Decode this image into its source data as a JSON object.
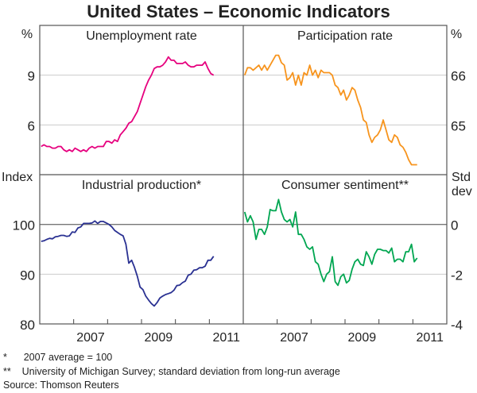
{
  "title": "United States – Economic Indicators",
  "chart_data": [
    {
      "type": "line",
      "title": "Unemployment rate",
      "ylabel": "%",
      "axis_side": "left",
      "ylim": [
        3,
        12
      ],
      "yticks": [
        6,
        9
      ],
      "xlim": [
        2006,
        2012
      ],
      "x_start": 2006,
      "step": "monthly",
      "color": "#e6007e",
      "values": [
        4.7,
        4.8,
        4.7,
        4.7,
        4.6,
        4.6,
        4.7,
        4.7,
        4.5,
        4.4,
        4.5,
        4.4,
        4.6,
        4.5,
        4.4,
        4.5,
        4.4,
        4.6,
        4.7,
        4.6,
        4.7,
        4.7,
        4.7,
        5.0,
        5.0,
        4.9,
        5.1,
        5.0,
        5.4,
        5.6,
        5.8,
        6.1,
        6.2,
        6.5,
        6.8,
        7.3,
        7.8,
        8.3,
        8.7,
        9.0,
        9.4,
        9.5,
        9.5,
        9.6,
        9.8,
        10.1,
        9.9,
        9.9,
        9.7,
        9.7,
        9.7,
        9.8,
        9.6,
        9.5,
        9.5,
        9.6,
        9.6,
        9.6,
        9.8,
        9.4,
        9.1,
        9.0
      ]
    },
    {
      "type": "line",
      "title": "Participation rate",
      "ylabel": "%",
      "axis_side": "right",
      "ylim": [
        64,
        67
      ],
      "yticks": [
        65,
        66
      ],
      "xlim": [
        2006,
        2012
      ],
      "x_start": 2006,
      "step": "monthly",
      "color": "#f7941d",
      "values": [
        66.0,
        66.15,
        66.15,
        66.1,
        66.15,
        66.2,
        66.1,
        66.2,
        66.1,
        66.2,
        66.3,
        66.4,
        66.4,
        66.25,
        66.2,
        65.9,
        65.95,
        66.05,
        65.8,
        66.0,
        65.8,
        66.05,
        66.0,
        66.2,
        66.0,
        66.1,
        65.95,
        66.1,
        66.05,
        66.05,
        66.05,
        66.0,
        65.8,
        65.75,
        65.6,
        65.7,
        65.5,
        65.6,
        65.75,
        65.7,
        65.5,
        65.35,
        65.1,
        65.05,
        64.8,
        64.65,
        64.75,
        64.8,
        64.9,
        65.1,
        64.9,
        64.7,
        64.65,
        64.8,
        64.75,
        64.6,
        64.55,
        64.45,
        64.3,
        64.2,
        64.2,
        64.2
      ]
    },
    {
      "type": "line",
      "title": "Industrial production*",
      "ylabel": "Index",
      "axis_side": "left",
      "ylim": [
        80,
        110
      ],
      "yticks": [
        80,
        90,
        100
      ],
      "xlim": [
        2006,
        2012
      ],
      "x_start": 2006,
      "step": "monthly",
      "xticks": [
        "2007",
        "2009",
        "2011"
      ],
      "color": "#2a3192",
      "values": [
        96.6,
        96.7,
        97.0,
        97.2,
        97.1,
        97.5,
        97.6,
        97.8,
        97.8,
        97.6,
        97.7,
        98.5,
        98.4,
        99.3,
        99.5,
        100.2,
        100.2,
        100.2,
        100.3,
        100.7,
        100.2,
        100.6,
        100.6,
        100.3,
        100.0,
        99.5,
        98.8,
        98.4,
        98.0,
        97.7,
        96.0,
        92.2,
        92.8,
        91.4,
        89.6,
        87.4,
        86.9,
        85.6,
        84.8,
        84.1,
        83.6,
        84.3,
        85.2,
        85.6,
        85.9,
        86.1,
        86.3,
        86.8,
        87.7,
        87.8,
        88.3,
        88.6,
        89.8,
        90.0,
        90.8,
        90.9,
        91.3,
        91.3,
        91.6,
        92.8,
        92.8,
        93.6
      ]
    },
    {
      "type": "line",
      "title": "Consumer sentiment**",
      "ylabel": "Std dev",
      "axis_side": "right",
      "ylim": [
        -4,
        2
      ],
      "yticks": [
        -4,
        -2,
        0
      ],
      "xlim": [
        2006,
        2012
      ],
      "x_start": 2006,
      "step": "monthly",
      "xticks": [
        "2007",
        "2009",
        "2011"
      ],
      "color": "#00a651",
      "values": [
        0.5,
        0.1,
        0.35,
        0.1,
        -0.6,
        -0.2,
        -0.2,
        -0.4,
        -0.1,
        0.6,
        0.55,
        0.55,
        1.0,
        0.5,
        0.2,
        0.1,
        0.2,
        -0.1,
        0.5,
        -0.4,
        -0.4,
        -0.6,
        -0.9,
        -1.0,
        -0.9,
        -1.5,
        -1.6,
        -2.0,
        -2.3,
        -2.0,
        -1.9,
        -1.3,
        -2.3,
        -2.45,
        -2.1,
        -2.0,
        -2.35,
        -2.25,
        -1.8,
        -1.5,
        -1.4,
        -1.6,
        -1.65,
        -1.1,
        -1.3,
        -1.6,
        -1.2,
        -1.0,
        -1.0,
        -1.05,
        -1.05,
        -1.15,
        -0.95,
        -1.5,
        -1.4,
        -1.4,
        -1.5,
        -1.1,
        -1.1,
        -0.8,
        -1.5,
        -1.35
      ]
    }
  ],
  "footnotes": [
    "*      2007 average = 100",
    "**    University of Michigan Survey; standard deviation from long-run average",
    "Source: Thomson Reuters"
  ]
}
